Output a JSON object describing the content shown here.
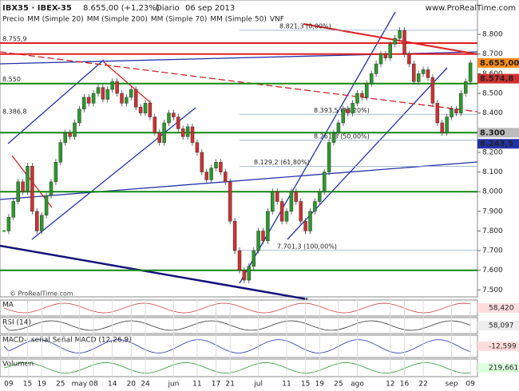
{
  "chart_data": {
    "type": "candlestick",
    "title": "IBX35 · IBEX-35",
    "subtitle": "8.655,00 (+1,23%)",
    "period": "Diario",
    "date": "06 sep 2013",
    "source": "www.ProRealTime.com",
    "footer": "© ProRealTime.com",
    "legend": [
      "Precio",
      "MM (Simple 20)",
      "MM (Simple 200)",
      "MM (Simple 70)",
      "MM (Simple 50)",
      "VNF"
    ],
    "legend_colors": [
      "#555555",
      "#cc2222",
      "#228822",
      "#2222aa",
      "#aaaaaa",
      "#aaaaaa"
    ],
    "up_color": "#2a9a2a",
    "down_color": "#d03030",
    "categories": [
      null,
      "09",
      null,
      null,
      null,
      "15",
      null,
      null,
      "19",
      null,
      null,
      null,
      "25",
      null,
      null,
      null,
      "may",
      null,
      null,
      "08",
      null,
      null,
      null,
      "14",
      null,
      null,
      null,
      "20",
      null,
      null,
      "24",
      null,
      null,
      null,
      null,
      null,
      "jun",
      null,
      null,
      null,
      null,
      "11",
      null,
      null,
      null,
      "17",
      null,
      null,
      "21",
      null,
      null,
      null,
      null,
      null,
      "jul",
      null,
      null,
      null,
      null,
      null,
      "11",
      null,
      null,
      null,
      "15",
      null,
      null,
      "19",
      null,
      null,
      null,
      "25",
      null,
      null,
      null,
      "ago",
      null,
      null,
      null,
      null,
      null,
      null,
      "12",
      null,
      null,
      "16",
      null,
      null,
      null,
      "22",
      null,
      null,
      null,
      null,
      null,
      "sep",
      null,
      null,
      null,
      "09"
    ],
    "close": [
      7800,
      7870,
      7950,
      8050,
      8000,
      8130,
      7900,
      7800,
      7880,
      7980,
      8050,
      8150,
      8250,
      8300,
      8280,
      8350,
      8420,
      8480,
      8450,
      8500,
      8530,
      8470,
      8520,
      8560,
      8500,
      8450,
      8480,
      8520,
      8430,
      8400,
      8450,
      8380,
      8300,
      8250,
      8350,
      8400,
      8380,
      8320,
      8280,
      8330,
      8250,
      8200,
      8100,
      8060,
      8120,
      8150,
      8100,
      8050,
      7850,
      7700,
      7600,
      7550,
      7620,
      7700,
      7800,
      7750,
      7900,
      8000,
      7950,
      7850,
      7900,
      8000,
      7950,
      7850,
      7800,
      7900,
      7950,
      8000,
      8100,
      8250,
      8300,
      8350,
      8420,
      8400,
      8450,
      8500,
      8480,
      8550,
      8600,
      8650,
      8700,
      8680,
      8750,
      8780,
      8820,
      8700,
      8650,
      8560,
      8600,
      8620,
      8580,
      8450,
      8350,
      8300,
      8380,
      8420,
      8400,
      8500,
      8560,
      8655
    ],
    "ylim": [
      7465,
      8975
    ],
    "yticks": [
      {
        "value": 8800,
        "label": "8.800"
      },
      {
        "value": 8700,
        "label": "8.700"
      },
      {
        "value": 8600,
        "label": "8.600"
      },
      {
        "value": 8500,
        "label": "8.500"
      },
      {
        "value": 8400,
        "label": "8.400"
      },
      {
        "value": 8300,
        "label": "8.300"
      },
      {
        "value": 8200,
        "label": "8.200"
      },
      {
        "value": 8100,
        "label": "8.100"
      },
      {
        "value": 8000,
        "label": "8.000"
      },
      {
        "value": 7900,
        "label": "7.900"
      },
      {
        "value": 7800,
        "label": "7.800"
      },
      {
        "value": 7700,
        "label": "7.700"
      },
      {
        "value": 7600,
        "label": "7.600"
      },
      {
        "value": 7500,
        "label": "7.500"
      }
    ],
    "levels": [
      {
        "value": 8755.9,
        "color": "#e02020"
      },
      {
        "value": 8700,
        "color": "#e02020"
      },
      {
        "value": 8550,
        "color": "#118811"
      },
      {
        "value": 8300,
        "color": "#118811"
      },
      {
        "value": 8000,
        "color": "#118811"
      },
      {
        "value": 7600,
        "color": "#118811"
      }
    ],
    "fib_levels": [
      {
        "value": 8821.3,
        "label": "8.821,3 (0,00%)"
      },
      {
        "value": 8393.5,
        "label": "8.393,5 (38,20%)"
      },
      {
        "value": 8261.3,
        "label": "8.261,3 (50,00%)"
      },
      {
        "value": 8129.2,
        "label": "8.129,2 (61,80%)"
      },
      {
        "value": 7701.3,
        "label": "7.701,3 (100,00%)"
      }
    ],
    "left_labels": [
      {
        "value": 8755.9,
        "label": "8.755,9"
      },
      {
        "value": 8550,
        "label": "8.550"
      },
      {
        "value": 8386.8,
        "label": "8.386,8"
      }
    ],
    "price_labels": [
      {
        "value": 8655,
        "label": "8.655,00",
        "color": "#ff8c1a"
      },
      {
        "value": 8574.8,
        "label": "8.574,8",
        "color": "#d03030"
      },
      {
        "value": 8300,
        "label": "8.300",
        "color": "#bbbbbb"
      },
      {
        "value": 8243.5,
        "label": "8.243,5",
        "color": "#2233aa"
      }
    ],
    "panels": [
      {
        "title": "MA",
        "last": "58,420"
      },
      {
        "title": "RSI (14)",
        "last": "58,097"
      },
      {
        "title": "MACD-, señal Señal MACD (12,26,9)",
        "last": "-12,599"
      },
      {
        "title": "Volumen",
        "last": "219,661"
      }
    ]
  }
}
